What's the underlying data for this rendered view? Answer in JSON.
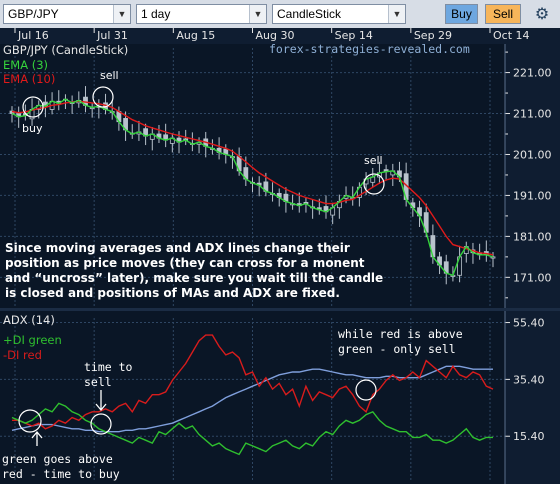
{
  "toolbar": {
    "symbol": "GBP/JPY",
    "timeframe": "1 day",
    "chart_type": "CandleStick",
    "buy_label": "Buy",
    "sell_label": "Sell",
    "settings_icon": "gear-icon",
    "dropdown_icon": "chevron-down-icon"
  },
  "colors": {
    "background": "#0a1626",
    "grid": "#2e4663",
    "axis_text": "#e6e6e6",
    "ema3": "#35d43c",
    "ema10": "#e01a1a",
    "candle": "#b8c2cc",
    "di_plus": "#2fbf2f",
    "di_minus": "#d81c1c",
    "adx": "#7f9fdc",
    "annotation_text": "#ffffff",
    "watermark": "#8fb0d6",
    "buy_button": "#6ea7e0",
    "sell_button": "#f7b55a"
  },
  "chart_data": [
    {
      "type": "candlestick",
      "title": "GBP/JPY (CandleStick)",
      "series": [
        {
          "name": "EMA (3)",
          "values": [
            211.0,
            210.2,
            210.5,
            212.0,
            213.0,
            212.8,
            214.0,
            213.5,
            214.5,
            213.6,
            214.2,
            213.0,
            212.5,
            212.8,
            212.0,
            211.5,
            209.0,
            207.0,
            206.0,
            206.5,
            205.5,
            206.0,
            205.0,
            204.5,
            205.0,
            204.0,
            204.5,
            203.5,
            204.0,
            203.0,
            202.5,
            201.5,
            201.0,
            200.5,
            197.0,
            195.0,
            194.0,
            193.5,
            192.0,
            191.5,
            190.5,
            189.5,
            189.0,
            188.5,
            189.0,
            188.0,
            187.5,
            187.0,
            188.0,
            189.5,
            191.0,
            190.5,
            193.0,
            195.0,
            195.5,
            196.5,
            196.8,
            197.0,
            195.5,
            190.0,
            188.0,
            186.0,
            182.0,
            176.0,
            174.0,
            172.0,
            171.5,
            176.0,
            178.5,
            177.0,
            176.5,
            176.5,
            176.0
          ]
        },
        {
          "name": "EMA (10)",
          "values": [
            211.5,
            211.2,
            211.4,
            211.8,
            212.2,
            212.5,
            213.0,
            213.2,
            213.6,
            213.8,
            214.0,
            213.8,
            213.6,
            213.4,
            213.0,
            212.5,
            211.5,
            210.5,
            209.5,
            208.8,
            208.0,
            207.5,
            207.0,
            206.5,
            206.0,
            205.6,
            205.2,
            204.8,
            204.4,
            204.0,
            203.5,
            203.0,
            202.5,
            201.8,
            200.5,
            199.2,
            197.8,
            196.5,
            195.5,
            194.5,
            193.5,
            192.5,
            191.8,
            191.0,
            190.5,
            190.0,
            189.5,
            189.0,
            189.0,
            189.3,
            189.8,
            190.0,
            191.0,
            192.0,
            193.0,
            194.0,
            194.8,
            195.2,
            195.0,
            193.5,
            192.0,
            190.5,
            188.5,
            186.0,
            183.5,
            181.0,
            179.0,
            178.5,
            178.0,
            177.5,
            177.0,
            176.8,
            176.5
          ]
        }
      ],
      "annotations": {
        "buy": "buy",
        "sell1": "sell",
        "sell2": "sell",
        "note": [
          "Since moving averages and ADX lines change their",
          "position as price moves (they can cross for a monent",
          "and “uncross” later), make sure you wait till the candle",
          "is closed and positions of MAs and ADX are fixed."
        ],
        "watermark": "forex-strategies-revealed.com"
      },
      "y_ticks": [
        "221.00",
        "211.00",
        "201.00",
        "191.00",
        "181.00",
        "171.00"
      ],
      "ylim": [
        164,
        227
      ],
      "x_ticks": [
        "Jul 16",
        "Jul 31",
        "Aug 15",
        "Aug 30",
        "Sep 14",
        "Sep 29",
        "Oct 14"
      ],
      "grid": true,
      "legend": "top-left"
    },
    {
      "type": "line",
      "title": "ADX (14)",
      "series": [
        {
          "name": "+DI green",
          "values": [
            22,
            21,
            20,
            21,
            23,
            25,
            24,
            27,
            26,
            24,
            23,
            21,
            20,
            18,
            17,
            16,
            15,
            14,
            13,
            15,
            14,
            13,
            17,
            16,
            18,
            20,
            18,
            19,
            16,
            14,
            12,
            13,
            11,
            10,
            9,
            13,
            12,
            11,
            10,
            12,
            13,
            14,
            12,
            11,
            13,
            12,
            15,
            17,
            16,
            19,
            21,
            20,
            21,
            23,
            24,
            21,
            19,
            18,
            17,
            17,
            15,
            15,
            16,
            14,
            14,
            13,
            14,
            16,
            18,
            15,
            14,
            15,
            15
          ]
        },
        {
          "name": "-DI red",
          "values": [
            21,
            21,
            20,
            19,
            20,
            18,
            19,
            21,
            20,
            22,
            21,
            23,
            24,
            24,
            25,
            24,
            26,
            27,
            24,
            28,
            27,
            30,
            30,
            31,
            35,
            38,
            41,
            45,
            49,
            51,
            51,
            47,
            44,
            45,
            43,
            37,
            38,
            33,
            36,
            32,
            34,
            30,
            32,
            26,
            33,
            28,
            31,
            30,
            29,
            32,
            33,
            30,
            26,
            24,
            30,
            32,
            35,
            37,
            35,
            36,
            38,
            36,
            42,
            40,
            38,
            36,
            40,
            37,
            36,
            38,
            37,
            33,
            32
          ]
        },
        {
          "name": "ADX",
          "values": [
            17.5,
            18,
            18.5,
            19,
            19.5,
            19.5,
            19.5,
            19,
            18.5,
            18,
            18,
            17.5,
            17.5,
            17,
            17,
            17,
            17,
            17.5,
            17.5,
            18,
            18,
            18.5,
            19,
            19.5,
            20,
            21,
            22,
            23,
            24,
            25,
            26,
            27.5,
            29,
            30,
            31,
            32,
            33,
            34,
            35,
            36,
            37,
            37.5,
            38,
            38,
            38.5,
            39,
            39,
            38.5,
            38,
            37.5,
            37,
            37,
            36.5,
            36,
            36,
            36,
            36.5,
            36.5,
            36,
            36,
            36,
            36,
            37,
            38,
            39,
            40,
            40,
            40,
            39.5,
            39,
            39,
            39,
            39
          ]
        }
      ],
      "annotations": {
        "time_to_sell": [
          "time to",
          "sell"
        ],
        "green_above": [
          "green goes above",
          "red - time to buy"
        ],
        "red_above": [
          "while red is above",
          "green - only sell"
        ]
      },
      "y_ticks": [
        "55.40",
        "35.40",
        "15.40"
      ],
      "ylim": [
        0,
        57
      ],
      "grid": true,
      "legend": "top-left"
    }
  ]
}
